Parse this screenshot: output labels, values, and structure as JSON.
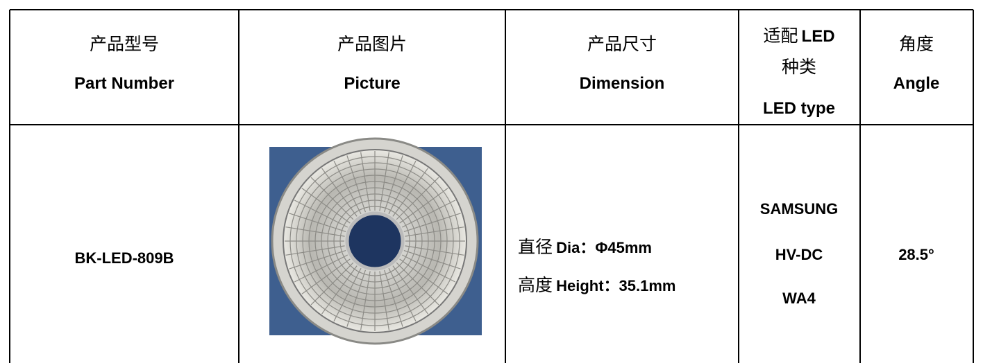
{
  "table": {
    "header": [
      {
        "zh": "产品型号",
        "en": "Part Number"
      },
      {
        "zh": "产品图片",
        "en": "Picture"
      },
      {
        "zh": "产品尺寸",
        "en": "Dimension"
      },
      {
        "zh": "适配",
        "en_inline": "LED",
        "zh2": "种类",
        "en": "LED type"
      },
      {
        "zh": "角度",
        "en": "Angle"
      }
    ],
    "rows": [
      {
        "part_number": "BK-LED-809B",
        "dimension": [
          {
            "zh": "直径",
            "en": "Dia：Φ45mm"
          },
          {
            "zh": "高度",
            "en": "Height：35.1mm"
          }
        ],
        "led_type": [
          "SAMSUNG",
          "HV-DC",
          "WA4"
        ],
        "angle": "28.5°"
      }
    ]
  }
}
